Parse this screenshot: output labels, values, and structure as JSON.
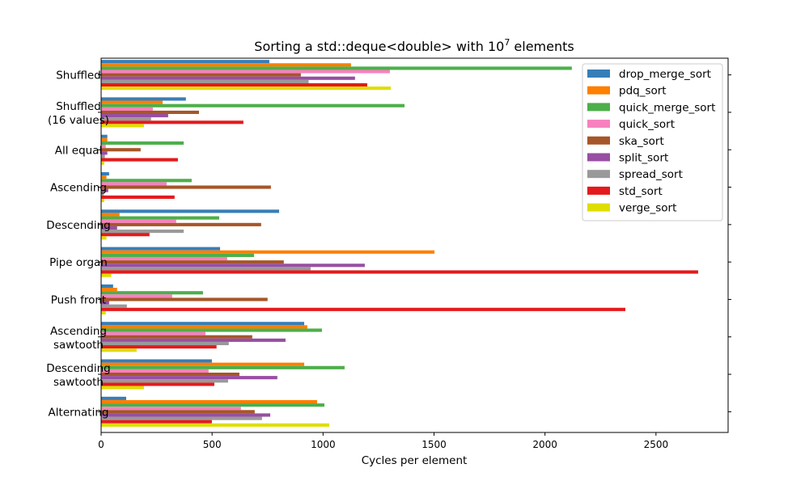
{
  "chart_data": {
    "type": "bar",
    "orientation": "horizontal",
    "title": {
      "prefix": "Sorting a std::deque<double> with 10",
      "exponent": "7",
      "suffix": " elements"
    },
    "xlabel": "Cycles per element",
    "ylabel": "",
    "xlim": [
      0,
      2825
    ],
    "xticks": [
      0,
      500,
      1000,
      1500,
      2000,
      2500
    ],
    "grid": false,
    "legend_position": "top-right",
    "categories": [
      "Shuffled",
      "Shuffled\n(16 values)",
      "All equal",
      "Ascending",
      "Descending",
      "Pipe organ",
      "Push front",
      "Ascending\nsawtooth",
      "Descending\nsawtooth",
      "Alternating"
    ],
    "series": [
      {
        "name": "drop_merge_sort",
        "color": "#377eb8",
        "values": [
          758,
          382,
          28,
          36,
          802,
          536,
          54,
          915,
          499,
          113
        ]
      },
      {
        "name": "pdq_sort",
        "color": "#ff7f00",
        "values": [
          1126,
          277,
          28,
          24,
          83,
          1502,
          72,
          929,
          915,
          973
        ]
      },
      {
        "name": "quick_merge_sort",
        "color": "#4daf4a",
        "values": [
          2121,
          1367,
          372,
          408,
          532,
          689,
          459,
          995,
          1097,
          1006
        ]
      },
      {
        "name": "quick_sort",
        "color": "#f781bf",
        "values": [
          1301,
          233,
          21,
          295,
          338,
          568,
          320,
          470,
          484,
          630
        ]
      },
      {
        "name": "ska_sort",
        "color": "#a65628",
        "values": [
          900,
          441,
          178,
          765,
          721,
          823,
          750,
          681,
          623,
          692
        ]
      },
      {
        "name": "split_sort",
        "color": "#984ea3",
        "values": [
          1144,
          302,
          28,
          32,
          72,
          1188,
          36,
          831,
          794,
          762
        ]
      },
      {
        "name": "spread_sort",
        "color": "#999999",
        "values": [
          935,
          225,
          17,
          12,
          372,
          944,
          116,
          575,
          572,
          725
        ]
      },
      {
        "name": "std_sort",
        "color": "#e41a1c",
        "values": [
          1199,
          641,
          346,
          331,
          218,
          2690,
          2362,
          520,
          510,
          499
        ]
      },
      {
        "name": "verge_sort",
        "color": "#dede00",
        "values": [
          1305,
          193,
          14,
          14,
          24,
          46,
          21,
          160,
          193,
          1028
        ]
      }
    ]
  }
}
